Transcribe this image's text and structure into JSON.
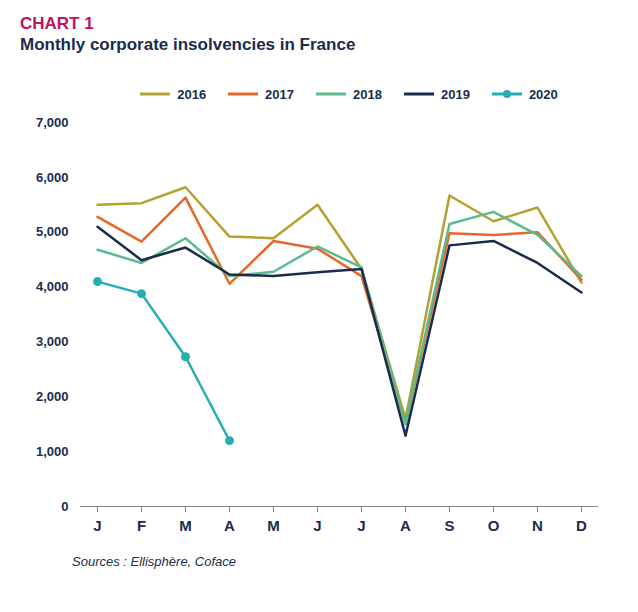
{
  "chart_data": {
    "type": "line",
    "title": "CHART 1",
    "subtitle": "Monthly corporate insolvencies in France",
    "source": "Sources : Ellisphère, Coface",
    "categories": [
      "J",
      "F",
      "M",
      "A",
      "M",
      "J",
      "J",
      "A",
      "S",
      "O",
      "N",
      "D"
    ],
    "series": [
      {
        "name": "2016",
        "color": "#b5a032",
        "values": [
          5500,
          5530,
          5820,
          4920,
          4890,
          5500,
          4330,
          1600,
          5670,
          5200,
          5450,
          4080
        ]
      },
      {
        "name": "2017",
        "color": "#e4692a",
        "values": [
          5280,
          4830,
          5630,
          4060,
          4840,
          4700,
          4200,
          1500,
          4980,
          4950,
          5000,
          4130
        ]
      },
      {
        "name": "2018",
        "color": "#5dba8c",
        "values": [
          4680,
          4440,
          4890,
          4200,
          4280,
          4740,
          4360,
          1500,
          5150,
          5370,
          4950,
          4200
        ]
      },
      {
        "name": "2019",
        "color": "#1a2c4e",
        "values": [
          5100,
          4490,
          4720,
          4230,
          4200,
          4270,
          4330,
          1290,
          4760,
          4840,
          4440,
          3900
        ]
      },
      {
        "name": "2020",
        "color": "#27aeb5",
        "marker": "circle",
        "values": [
          4100,
          3880,
          2730,
          1200,
          null,
          null,
          null,
          null,
          null,
          null,
          null,
          null
        ]
      }
    ],
    "ylim": [
      0,
      7000
    ],
    "yticks": [
      0,
      {
        "value": 1000,
        "label": "1,000"
      },
      {
        "value": 2000,
        "label": "2,000"
      },
      {
        "value": 3000,
        "label": "3,000"
      },
      {
        "value": 4000,
        "label": "4,000"
      },
      {
        "value": 5000,
        "label": "5,000"
      },
      {
        "value": 6000,
        "label": "6,000"
      },
      {
        "value": 7000,
        "label": "7,000"
      }
    ],
    "grid": false,
    "legend": "top"
  }
}
